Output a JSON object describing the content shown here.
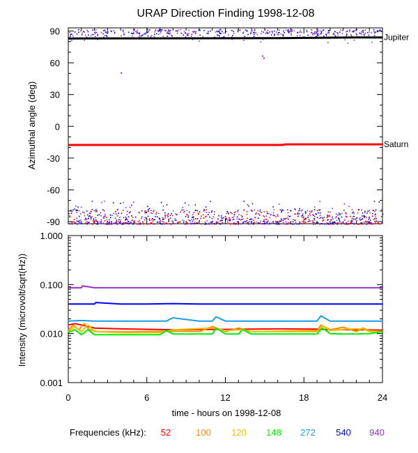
{
  "chart_data": [
    {
      "type": "scatter",
      "title": "URAP Direction Finding  1998-12-08",
      "ylabel": "Azimuthal angle (deg)",
      "xlim": [
        0,
        24
      ],
      "ylim": [
        -92,
        93
      ],
      "yticks": [
        90,
        60,
        30,
        0,
        -30,
        -60,
        -90
      ],
      "grid": false,
      "reference_lines": [
        {
          "label": "Jupiter",
          "color": "#000000",
          "x": [
            0,
            16,
            22,
            24
          ],
          "y": [
            83,
            83.3,
            84,
            84
          ]
        },
        {
          "label": "Saturn",
          "color": "#ff0000",
          "x": [
            0,
            16.4,
            16.6,
            24
          ],
          "y": [
            -17.6,
            -17.6,
            -17,
            -17
          ]
        }
      ],
      "scatter_bands": [
        {
          "region": "top",
          "y_range": [
            84,
            92
          ],
          "colors": [
            "#8a2be2",
            "#0000cd"
          ]
        },
        {
          "region": "bottom",
          "y_range": [
            -92,
            -78
          ],
          "colors": [
            "#0000cd",
            "#8a2be2",
            "#ff0000"
          ]
        }
      ],
      "outliers": [
        {
          "x": 4.0,
          "y": 51
        },
        {
          "x": 14.8,
          "y": 67
        },
        {
          "x": 14.9,
          "y": 65
        }
      ]
    },
    {
      "type": "line",
      "ylabel": "Intensity (microvolt/sqrt(Hz))",
      "xlabel": "time - hours on 1998-12-08",
      "xlim": [
        0,
        24
      ],
      "xticks": [
        0,
        6,
        12,
        18,
        24
      ],
      "y_scale": "log",
      "ylim": [
        0.001,
        1.0
      ],
      "yticks": [
        "0.001",
        "0.010",
        "0.100",
        "1.000"
      ],
      "legend_title": "Frequencies (kHz):",
      "series": [
        {
          "name": "52",
          "color": "#ff0000",
          "x": [
            0,
            0.5,
            1,
            2,
            4,
            8,
            12,
            16,
            19,
            20,
            22,
            24
          ],
          "y": [
            0.015,
            0.016,
            0.015,
            0.013,
            0.0125,
            0.012,
            0.0122,
            0.0125,
            0.0123,
            0.012,
            0.012,
            0.0118
          ]
        },
        {
          "name": "100",
          "color": "#ff8c00",
          "x": [
            0,
            0.4,
            0.8,
            1.2,
            1.6,
            2.2,
            4,
            6,
            8,
            10,
            11,
            12,
            13,
            14,
            16,
            19,
            19.3,
            20,
            21,
            22,
            22.5,
            23,
            24
          ],
          "y": [
            0.012,
            0.015,
            0.012,
            0.016,
            0.012,
            0.011,
            0.0108,
            0.011,
            0.0112,
            0.011,
            0.014,
            0.011,
            0.013,
            0.011,
            0.0112,
            0.0115,
            0.015,
            0.012,
            0.0135,
            0.011,
            0.013,
            0.0115,
            0.0112
          ]
        },
        {
          "name": "120",
          "color": "#e6c200",
          "x": [
            0,
            0.5,
            1,
            1.5,
            2,
            4,
            7,
            8,
            11,
            12,
            13.2,
            14,
            16,
            19,
            19.4,
            20,
            21.5,
            22.5,
            23,
            24
          ],
          "y": [
            0.011,
            0.014,
            0.011,
            0.015,
            0.011,
            0.0105,
            0.0105,
            0.012,
            0.013,
            0.0115,
            0.012,
            0.011,
            0.011,
            0.011,
            0.0145,
            0.0115,
            0.0125,
            0.0125,
            0.011,
            0.011
          ]
        },
        {
          "name": "148",
          "color": "#00ee00",
          "x": [
            0,
            0.5,
            1,
            1.5,
            2,
            4,
            7,
            7.5,
            8,
            11,
            11.3,
            12,
            13,
            13.3,
            14,
            16,
            19,
            19.4,
            20,
            21,
            22,
            23,
            24
          ],
          "y": [
            0.0105,
            0.012,
            0.0095,
            0.012,
            0.0095,
            0.0095,
            0.0095,
            0.0115,
            0.0098,
            0.0098,
            0.013,
            0.0098,
            0.0098,
            0.012,
            0.0098,
            0.0098,
            0.0098,
            0.013,
            0.01,
            0.0098,
            0.0098,
            0.01,
            0.011
          ]
        },
        {
          "name": "272",
          "color": "#1e9be6",
          "x": [
            0,
            1,
            2,
            4,
            7.5,
            8,
            10,
            11,
            11.3,
            12,
            14,
            18,
            19,
            19.3,
            20,
            22,
            24
          ],
          "y": [
            0.018,
            0.0185,
            0.018,
            0.018,
            0.018,
            0.021,
            0.018,
            0.018,
            0.022,
            0.018,
            0.018,
            0.018,
            0.018,
            0.023,
            0.018,
            0.018,
            0.018
          ]
        },
        {
          "name": "540",
          "color": "#0000ee",
          "x": [
            0,
            2,
            2.1,
            4,
            6,
            8,
            10,
            12,
            14,
            18,
            24
          ],
          "y": [
            0.04,
            0.04,
            0.043,
            0.04,
            0.04,
            0.041,
            0.04,
            0.04,
            0.04,
            0.04,
            0.04
          ]
        },
        {
          "name": "940",
          "color": "#9932cc",
          "x": [
            0,
            1,
            1.1,
            2,
            6,
            12,
            18,
            24
          ],
          "y": [
            0.086,
            0.086,
            0.094,
            0.086,
            0.086,
            0.086,
            0.086,
            0.086
          ]
        }
      ]
    }
  ]
}
